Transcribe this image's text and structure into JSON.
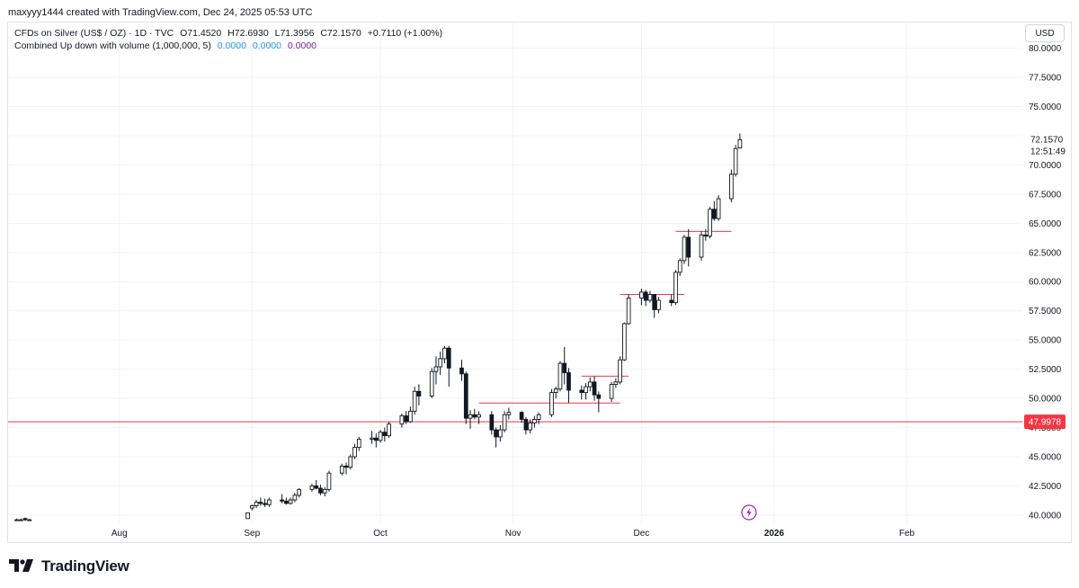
{
  "header": {
    "attribution": "maxyyy1444 created with TradingView.com, Dec 24, 2025 05:53 UTC"
  },
  "legend": {
    "symbol_line": "CFDs on Silver (US$ / OZ) · 1D · TVC",
    "open": "O71.4520",
    "high": "H72.6930",
    "low": "L71.3956",
    "close": "C72.1570",
    "change": "+0.7110 (+1.00%)",
    "indicator": "Combined Up down with volume (1,000,000, 5)",
    "indicator_values": [
      "0.0000",
      "0.0000",
      "0.0000"
    ]
  },
  "currency": "USD",
  "price_label": {
    "last_price": "72.1570",
    "countdown": "12:51:49",
    "hline_label": "47.9978"
  },
  "logo": {
    "text": "TradingView"
  },
  "colors": {
    "hline": "#f23645",
    "grid": "#f0f3fa",
    "axis_text": "#131722",
    "candle_outline": "#131722",
    "candle_up_fill": "#ffffff",
    "candle_down_fill": "#131722"
  },
  "chart_data": {
    "type": "candlestick",
    "title": "CFDs on Silver (US$ / OZ) · 1D · TVC",
    "y_ticks": [
      "80.0000",
      "77.5000",
      "75.0000",
      "72.5000",
      "70.0000",
      "67.5000",
      "65.0000",
      "62.5000",
      "60.0000",
      "57.5000",
      "55.0000",
      "52.5000",
      "50.0000",
      "47.5000",
      "45.0000",
      "42.5000",
      "40.0000"
    ],
    "ylim": [
      39.3,
      82.2
    ],
    "x_ticks": [
      {
        "label": "Aug",
        "date": "2025-08-01"
      },
      {
        "label": "Sep",
        "date": "2025-09-01"
      },
      {
        "label": "Oct",
        "date": "2025-10-01"
      },
      {
        "label": "Nov",
        "date": "2025-11-01"
      },
      {
        "label": "Dec",
        "date": "2025-12-01"
      },
      {
        "label": "2026",
        "date": "2026-01-01"
      },
      {
        "label": "Feb",
        "date": "2026-02-01"
      }
    ],
    "xlim": [
      "2025-07-06",
      "2026-02-28"
    ],
    "horizontal_lines": [
      {
        "value": 47.9978,
        "from": "2025-07-06",
        "to": "2026-02-28"
      },
      {
        "value": 49.6,
        "from": "2025-10-24",
        "to": "2025-11-26"
      },
      {
        "value": 51.9,
        "from": "2025-11-17",
        "to": "2025-11-28"
      },
      {
        "value": 58.9,
        "from": "2025-11-26",
        "to": "2025-12-11"
      },
      {
        "value": 64.3,
        "from": "2025-12-09",
        "to": "2025-12-22"
      }
    ],
    "candles": [
      {
        "date": "2025-07-08",
        "o": 39.6,
        "h": 39.7,
        "l": 39.5,
        "c": 39.6
      },
      {
        "date": "2025-07-09",
        "o": 39.6,
        "h": 39.7,
        "l": 39.5,
        "c": 39.6
      },
      {
        "date": "2025-07-10",
        "o": 39.7,
        "h": 39.8,
        "l": 39.5,
        "c": 39.6
      },
      {
        "date": "2025-07-11",
        "o": 39.6,
        "h": 39.7,
        "l": 39.5,
        "c": 39.6
      },
      {
        "date": "2025-08-31",
        "o": 39.7,
        "h": 40.2,
        "l": 39.7,
        "c": 40.2
      },
      {
        "date": "2025-09-01",
        "o": 40.6,
        "h": 40.9,
        "l": 40.4,
        "c": 40.8
      },
      {
        "date": "2025-09-02",
        "o": 40.8,
        "h": 41.3,
        "l": 40.6,
        "c": 41.1
      },
      {
        "date": "2025-09-03",
        "o": 41.1,
        "h": 41.5,
        "l": 40.8,
        "c": 41.0
      },
      {
        "date": "2025-09-04",
        "o": 41.0,
        "h": 41.4,
        "l": 40.7,
        "c": 40.9
      },
      {
        "date": "2025-09-05",
        "o": 40.9,
        "h": 41.5,
        "l": 40.7,
        "c": 41.3
      },
      {
        "date": "2025-09-08",
        "o": 41.3,
        "h": 41.8,
        "l": 41.0,
        "c": 41.2
      },
      {
        "date": "2025-09-09",
        "o": 41.2,
        "h": 41.5,
        "l": 40.9,
        "c": 41.0
      },
      {
        "date": "2025-09-10",
        "o": 41.0,
        "h": 41.5,
        "l": 40.9,
        "c": 41.3
      },
      {
        "date": "2025-09-11",
        "o": 41.3,
        "h": 41.9,
        "l": 41.1,
        "c": 41.7
      },
      {
        "date": "2025-09-12",
        "o": 41.7,
        "h": 42.3,
        "l": 41.5,
        "c": 42.2
      },
      {
        "date": "2025-09-15",
        "o": 42.2,
        "h": 42.7,
        "l": 42.0,
        "c": 42.5
      },
      {
        "date": "2025-09-16",
        "o": 42.5,
        "h": 43.0,
        "l": 42.2,
        "c": 42.3
      },
      {
        "date": "2025-09-17",
        "o": 42.3,
        "h": 42.6,
        "l": 41.7,
        "c": 41.9
      },
      {
        "date": "2025-09-18",
        "o": 41.9,
        "h": 42.4,
        "l": 41.6,
        "c": 42.2
      },
      {
        "date": "2025-09-19",
        "o": 42.2,
        "h": 43.8,
        "l": 42.0,
        "c": 43.6
      },
      {
        "date": "2025-09-22",
        "o": 43.6,
        "h": 44.4,
        "l": 43.4,
        "c": 44.2
      },
      {
        "date": "2025-09-23",
        "o": 44.2,
        "h": 44.5,
        "l": 43.5,
        "c": 44.1
      },
      {
        "date": "2025-09-24",
        "o": 44.1,
        "h": 45.2,
        "l": 43.9,
        "c": 45.0
      },
      {
        "date": "2025-09-25",
        "o": 45.0,
        "h": 46.1,
        "l": 44.8,
        "c": 45.8
      },
      {
        "date": "2025-09-26",
        "o": 45.8,
        "h": 46.7,
        "l": 45.5,
        "c": 46.5
      },
      {
        "date": "2025-09-29",
        "o": 46.5,
        "h": 47.2,
        "l": 46.1,
        "c": 46.6
      },
      {
        "date": "2025-09-30",
        "o": 46.6,
        "h": 47.0,
        "l": 45.8,
        "c": 46.4
      },
      {
        "date": "2025-10-01",
        "o": 46.4,
        "h": 47.3,
        "l": 46.2,
        "c": 47.1
      },
      {
        "date": "2025-10-02",
        "o": 47.1,
        "h": 47.5,
        "l": 46.3,
        "c": 46.8
      },
      {
        "date": "2025-10-03",
        "o": 46.8,
        "h": 48.0,
        "l": 46.6,
        "c": 47.8
      },
      {
        "date": "2025-10-06",
        "o": 47.8,
        "h": 48.7,
        "l": 47.5,
        "c": 48.5
      },
      {
        "date": "2025-10-07",
        "o": 48.5,
        "h": 48.9,
        "l": 47.8,
        "c": 48.0
      },
      {
        "date": "2025-10-08",
        "o": 48.0,
        "h": 49.3,
        "l": 47.9,
        "c": 48.9
      },
      {
        "date": "2025-10-09",
        "o": 48.9,
        "h": 51.0,
        "l": 48.6,
        "c": 50.6
      },
      {
        "date": "2025-10-10",
        "o": 50.6,
        "h": 51.2,
        "l": 49.4,
        "c": 50.2
      },
      {
        "date": "2025-10-13",
        "o": 50.2,
        "h": 52.6,
        "l": 50.0,
        "c": 52.3
      },
      {
        "date": "2025-10-14",
        "o": 52.3,
        "h": 53.6,
        "l": 51.2,
        "c": 52.7
      },
      {
        "date": "2025-10-15",
        "o": 52.7,
        "h": 54.0,
        "l": 52.0,
        "c": 53.4
      },
      {
        "date": "2025-10-16",
        "o": 53.4,
        "h": 54.5,
        "l": 53.0,
        "c": 54.3
      },
      {
        "date": "2025-10-17",
        "o": 54.3,
        "h": 54.5,
        "l": 51.0,
        "c": 52.6
      },
      {
        "date": "2025-10-20",
        "o": 52.6,
        "h": 53.3,
        "l": 51.5,
        "c": 52.1
      },
      {
        "date": "2025-10-21",
        "o": 52.1,
        "h": 52.3,
        "l": 47.8,
        "c": 48.3
      },
      {
        "date": "2025-10-22",
        "o": 48.3,
        "h": 49.0,
        "l": 47.4,
        "c": 48.6
      },
      {
        "date": "2025-10-23",
        "o": 48.6,
        "h": 49.1,
        "l": 48.2,
        "c": 48.4
      },
      {
        "date": "2025-10-24",
        "o": 48.4,
        "h": 48.9,
        "l": 47.8,
        "c": 48.6
      },
      {
        "date": "2025-10-27",
        "o": 48.6,
        "h": 48.9,
        "l": 46.9,
        "c": 47.3
      },
      {
        "date": "2025-10-28",
        "o": 47.3,
        "h": 47.5,
        "l": 45.8,
        "c": 46.7
      },
      {
        "date": "2025-10-29",
        "o": 46.7,
        "h": 47.7,
        "l": 46.3,
        "c": 47.3
      },
      {
        "date": "2025-10-30",
        "o": 47.3,
        "h": 48.9,
        "l": 47.1,
        "c": 48.6
      },
      {
        "date": "2025-10-31",
        "o": 48.6,
        "h": 49.2,
        "l": 48.2,
        "c": 48.8
      },
      {
        "date": "2025-11-03",
        "o": 48.8,
        "h": 48.9,
        "l": 47.9,
        "c": 48.2
      },
      {
        "date": "2025-11-04",
        "o": 48.2,
        "h": 48.4,
        "l": 46.9,
        "c": 47.3
      },
      {
        "date": "2025-11-05",
        "o": 47.3,
        "h": 48.2,
        "l": 47.0,
        "c": 47.9
      },
      {
        "date": "2025-11-06",
        "o": 47.9,
        "h": 48.5,
        "l": 47.5,
        "c": 48.2
      },
      {
        "date": "2025-11-07",
        "o": 48.2,
        "h": 48.8,
        "l": 47.8,
        "c": 48.6
      },
      {
        "date": "2025-11-10",
        "o": 48.6,
        "h": 50.8,
        "l": 48.4,
        "c": 50.5
      },
      {
        "date": "2025-11-11",
        "o": 50.5,
        "h": 51.0,
        "l": 50.0,
        "c": 50.8
      },
      {
        "date": "2025-11-12",
        "o": 50.8,
        "h": 53.2,
        "l": 50.6,
        "c": 53.0
      },
      {
        "date": "2025-11-13",
        "o": 53.0,
        "h": 54.4,
        "l": 51.2,
        "c": 52.2
      },
      {
        "date": "2025-11-14",
        "o": 52.2,
        "h": 52.6,
        "l": 49.6,
        "c": 50.7
      },
      {
        "date": "2025-11-17",
        "o": 50.7,
        "h": 51.1,
        "l": 49.9,
        "c": 50.5
      },
      {
        "date": "2025-11-18",
        "o": 50.5,
        "h": 51.3,
        "l": 49.9,
        "c": 51.0
      },
      {
        "date": "2025-11-19",
        "o": 51.0,
        "h": 51.8,
        "l": 50.6,
        "c": 51.4
      },
      {
        "date": "2025-11-20",
        "o": 51.4,
        "h": 51.9,
        "l": 49.8,
        "c": 50.3
      },
      {
        "date": "2025-11-21",
        "o": 50.3,
        "h": 50.6,
        "l": 48.8,
        "c": 50.0
      },
      {
        "date": "2025-11-24",
        "o": 50.0,
        "h": 51.4,
        "l": 49.7,
        "c": 51.2
      },
      {
        "date": "2025-11-25",
        "o": 51.2,
        "h": 51.7,
        "l": 50.9,
        "c": 51.4
      },
      {
        "date": "2025-11-26",
        "o": 51.4,
        "h": 53.6,
        "l": 51.2,
        "c": 53.3
      },
      {
        "date": "2025-11-27",
        "o": 53.3,
        "h": 56.5,
        "l": 53.2,
        "c": 56.4
      },
      {
        "date": "2025-11-28",
        "o": 56.4,
        "h": 58.9,
        "l": 56.3,
        "c": 58.6
      },
      {
        "date": "2025-12-01",
        "o": 58.6,
        "h": 59.4,
        "l": 58.0,
        "c": 59.1
      },
      {
        "date": "2025-12-02",
        "o": 59.1,
        "h": 59.3,
        "l": 57.9,
        "c": 58.4
      },
      {
        "date": "2025-12-03",
        "o": 58.4,
        "h": 59.2,
        "l": 58.2,
        "c": 58.9
      },
      {
        "date": "2025-12-04",
        "o": 58.9,
        "h": 58.9,
        "l": 56.9,
        "c": 57.6
      },
      {
        "date": "2025-12-05",
        "o": 57.6,
        "h": 58.7,
        "l": 57.3,
        "c": 58.4
      },
      {
        "date": "2025-12-08",
        "o": 58.4,
        "h": 58.9,
        "l": 57.9,
        "c": 58.2
      },
      {
        "date": "2025-12-09",
        "o": 58.2,
        "h": 61.0,
        "l": 58.0,
        "c": 60.8
      },
      {
        "date": "2025-12-10",
        "o": 60.8,
        "h": 62.0,
        "l": 60.5,
        "c": 61.8
      },
      {
        "date": "2025-12-11",
        "o": 61.8,
        "h": 64.0,
        "l": 61.5,
        "c": 63.8
      },
      {
        "date": "2025-12-12",
        "o": 63.8,
        "h": 64.5,
        "l": 61.3,
        "c": 62.1
      },
      {
        "date": "2025-12-15",
        "o": 62.1,
        "h": 64.3,
        "l": 61.8,
        "c": 64.0
      },
      {
        "date": "2025-12-16",
        "o": 64.0,
        "h": 64.5,
        "l": 63.5,
        "c": 63.9
      },
      {
        "date": "2025-12-17",
        "o": 63.9,
        "h": 66.4,
        "l": 63.7,
        "c": 66.2
      },
      {
        "date": "2025-12-18",
        "o": 66.2,
        "h": 66.9,
        "l": 65.2,
        "c": 65.4
      },
      {
        "date": "2025-12-19",
        "o": 65.4,
        "h": 67.4,
        "l": 65.2,
        "c": 67.1
      },
      {
        "date": "2025-12-22",
        "o": 67.1,
        "h": 69.6,
        "l": 66.8,
        "c": 69.2
      },
      {
        "date": "2025-12-23",
        "o": 69.2,
        "h": 71.7,
        "l": 69.0,
        "c": 71.4
      },
      {
        "date": "2025-12-24",
        "o": 71.452,
        "h": 72.693,
        "l": 71.3956,
        "c": 72.157
      }
    ]
  }
}
